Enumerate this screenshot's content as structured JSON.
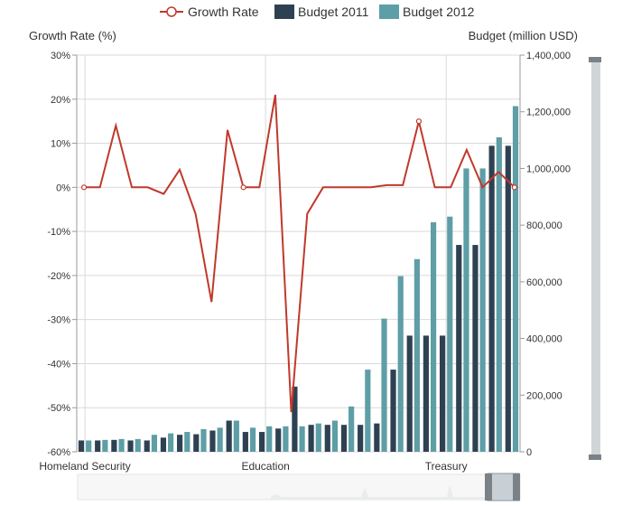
{
  "chart_data": {
    "type": "bar",
    "legend": {
      "position": "top-center",
      "items": [
        {
          "name": "Growth Rate",
          "kind": "line",
          "color": "#c0392b"
        },
        {
          "name": "Budget 2011",
          "kind": "bar",
          "color": "#2e4152"
        },
        {
          "name": "Budget 2012",
          "kind": "bar",
          "color": "#5e9ea6"
        }
      ]
    },
    "left_axis": {
      "title": "Growth Rate (%)",
      "ticks": [
        "30%",
        "20%",
        "10%",
        "0%",
        "-10%",
        "-20%",
        "-30%",
        "-40%",
        "-50%",
        "-60%"
      ],
      "range": [
        -60,
        30
      ]
    },
    "right_axis": {
      "title": "Budget (million USD)",
      "ticks": [
        "1,400,000",
        "1,200,000",
        "1,000,000",
        "800,000",
        "600,000",
        "400,000",
        "200,000",
        "0"
      ],
      "range": [
        0,
        1400000
      ]
    },
    "category_labels": [
      {
        "index": 0,
        "label": "Homeland Security"
      },
      {
        "index": 11,
        "label": "Education"
      },
      {
        "index": 22,
        "label": "Treasury"
      }
    ],
    "budget_2011": [
      40000,
      40000,
      42000,
      40000,
      40000,
      50000,
      60000,
      62000,
      75000,
      110000,
      70000,
      70000,
      82000,
      230000,
      95000,
      95000,
      95000,
      95000,
      100000,
      290000,
      410000,
      410000,
      410000,
      730000,
      730000,
      1080000,
      1080000
    ],
    "budget_2012": [
      40000,
      42000,
      45000,
      45000,
      60000,
      65000,
      70000,
      80000,
      85000,
      110000,
      85000,
      90000,
      90000,
      90000,
      100000,
      110000,
      160000,
      290000,
      470000,
      620000,
      680000,
      810000,
      830000,
      1000000,
      1000000,
      1110000,
      1220000
    ],
    "growth_rate": [
      0,
      0,
      14,
      0,
      0,
      -1.5,
      4,
      -6,
      -26,
      13,
      0,
      0,
      21,
      -51,
      -6,
      0,
      0,
      0,
      0,
      0.5,
      0.5,
      15,
      0,
      0,
      8.5,
      0,
      3.5,
      0
    ],
    "growth_markers": [
      0,
      10,
      21,
      27
    ]
  },
  "scrollbar": {
    "orientation": "vertical"
  },
  "navigator": {
    "orientation": "horizontal"
  }
}
